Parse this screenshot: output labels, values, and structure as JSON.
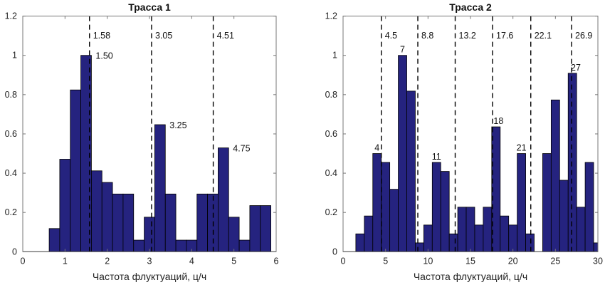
{
  "chart_data": [
    {
      "type": "bar",
      "title": "Трасса 1",
      "xlabel": "Частота флуктуаций, ц/ч",
      "ylabel": "",
      "xlim": [
        0,
        6
      ],
      "ylim": [
        0,
        1.2
      ],
      "xticks": [
        0,
        1,
        2,
        3,
        4,
        5,
        6
      ],
      "yticks": [
        0,
        0.2,
        0.4,
        0.6,
        0.8,
        1,
        1.2
      ],
      "bin_width": 0.25,
      "x": [
        0.75,
        1.0,
        1.25,
        1.5,
        1.75,
        2.0,
        2.25,
        2.5,
        2.75,
        3.0,
        3.25,
        3.5,
        3.75,
        4.0,
        4.25,
        4.5,
        4.75,
        5.0,
        5.25,
        5.5,
        5.75
      ],
      "values": [
        0.118,
        0.471,
        0.824,
        1.0,
        0.412,
        0.353,
        0.294,
        0.294,
        0.059,
        0.176,
        0.647,
        0.294,
        0.059,
        0.059,
        0.294,
        0.294,
        0.529,
        0.176,
        0.059,
        0.235,
        0.235
      ],
      "bar_color": "#25237f",
      "grid": false,
      "dashed_lines": [
        {
          "x": 1.58,
          "label": "1.58"
        },
        {
          "x": 3.05,
          "label": "3.05"
        },
        {
          "x": 4.51,
          "label": "4.51"
        }
      ],
      "annotations": [
        {
          "x": 1.5,
          "y": 1.0,
          "label": "1.50",
          "align": "right"
        },
        {
          "x": 3.25,
          "y": 0.647,
          "label": "3.25",
          "align": "right"
        },
        {
          "x": 4.75,
          "y": 0.529,
          "label": "4.75",
          "align": "right"
        }
      ]
    },
    {
      "type": "bar",
      "title": "Трасса 2",
      "xlabel": "Частота флуктуаций, ц/ч",
      "ylabel": "",
      "xlim": [
        0,
        30
      ],
      "ylim": [
        0,
        1.2
      ],
      "xticks": [
        0,
        5,
        10,
        15,
        20,
        25,
        30
      ],
      "yticks": [
        0,
        0.2,
        0.4,
        0.6,
        0.8,
        1,
        1.2
      ],
      "bin_width": 1,
      "x": [
        2,
        3,
        4,
        5,
        6,
        7,
        8,
        9,
        10,
        11,
        12,
        13,
        14,
        15,
        16,
        17,
        18,
        19,
        20,
        21,
        22,
        23,
        24,
        25,
        26,
        27,
        28,
        29,
        30
      ],
      "values": [
        0.091,
        0.182,
        0.5,
        0.455,
        0.318,
        1.0,
        0.818,
        0.045,
        0.136,
        0.455,
        0.409,
        0.091,
        0.227,
        0.227,
        0.136,
        0.227,
        0.636,
        0.182,
        0.136,
        0.5,
        0.091,
        0,
        0.5,
        0.773,
        0.364,
        0.909,
        0.227,
        0.455,
        0.045
      ],
      "bar_color": "#25237f",
      "grid": false,
      "dashed_lines": [
        {
          "x": 4.5,
          "label": "4.5"
        },
        {
          "x": 8.8,
          "label": "8.8"
        },
        {
          "x": 13.2,
          "label": "13.2"
        },
        {
          "x": 17.6,
          "label": "17.6"
        },
        {
          "x": 22.1,
          "label": "22.1"
        },
        {
          "x": 26.9,
          "label": "26.9"
        }
      ],
      "annotations": [
        {
          "x": 4,
          "y": 0.5,
          "label": "4",
          "align": "top"
        },
        {
          "x": 7,
          "y": 1.0,
          "label": "7",
          "align": "top"
        },
        {
          "x": 11,
          "y": 0.455,
          "label": "11",
          "align": "top"
        },
        {
          "x": 18.3,
          "y": 0.636,
          "label": "18",
          "align": "top"
        },
        {
          "x": 21,
          "y": 0.5,
          "label": "21",
          "align": "top"
        },
        {
          "x": 27.4,
          "y": 0.909,
          "label": "27",
          "align": "top"
        }
      ]
    }
  ]
}
